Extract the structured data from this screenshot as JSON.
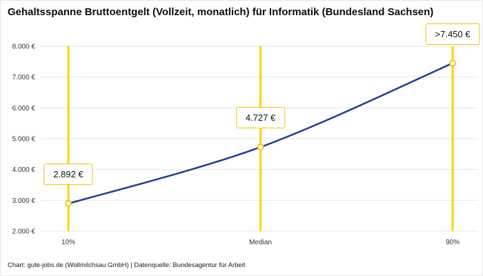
{
  "title": "Gehaltsspanne Bruttoentgelt (Vollzeit, monatlich) für Informatik (Bundesland Sachsen)",
  "footer": "Chart: gute-jobs.de (Wollmilchsau GmbH) | Datenquelle: Bundesagentur für Arbeit",
  "chart_data": {
    "type": "line",
    "title": "Gehaltsspanne Bruttoentgelt (Vollzeit, monatlich) für Informatik (Bundesland Sachsen)",
    "categories": [
      "10%",
      "Median",
      "90%"
    ],
    "values": [
      2892,
      4727,
      7450
    ],
    "value_labels": [
      "2.892 €",
      "4.727 €",
      ">7.450 €"
    ],
    "ylim": [
      2000,
      8000
    ],
    "ytick_values": [
      2000,
      3000,
      4000,
      5000,
      6000,
      7000,
      8000
    ],
    "ytick_labels": [
      "2.000 €",
      "3.000 €",
      "4.000 €",
      "5.000 €",
      "6.000 €",
      "7.000 €",
      "8.000 €"
    ],
    "xlabel": "",
    "ylabel": "",
    "grid": true,
    "legend": "none",
    "colors": {
      "line": "#1e3d8f",
      "marker_fill": "#ffffff",
      "marker_stroke": "#f2c200",
      "vline": "#ffd200",
      "label_border": "#f2c200",
      "grid": "#e4e4e4",
      "axis_text": "#333333"
    }
  }
}
